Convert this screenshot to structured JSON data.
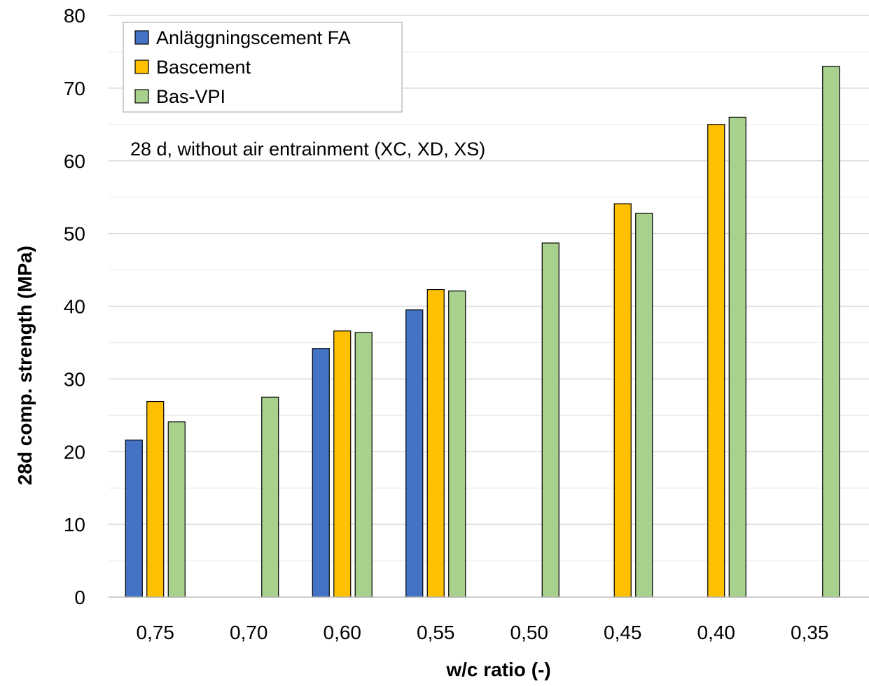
{
  "chart_data": {
    "type": "bar",
    "title": "",
    "xlabel": "w/c ratio (-)",
    "ylabel": "28d comp. strength (MPa)",
    "annotation": "28 d, without air entrainment (XC, XD, XS)",
    "categories": [
      "0,75",
      "0,70",
      "0,60",
      "0,55",
      "0,50",
      "0,45",
      "0,40",
      "0,35"
    ],
    "ylim": [
      0,
      80
    ],
    "yticks": [
      0,
      10,
      20,
      30,
      40,
      50,
      60,
      70,
      80
    ],
    "grid": true,
    "legend_position": "top-left",
    "series": [
      {
        "name": "Anläggningscement FA",
        "color": "#4472C4",
        "values": [
          21.6,
          null,
          34.2,
          39.5,
          null,
          null,
          null,
          null
        ]
      },
      {
        "name": "Bascement",
        "color": "#FFC000",
        "values": [
          26.9,
          null,
          36.6,
          42.3,
          null,
          54.1,
          65.0,
          null
        ]
      },
      {
        "name": "Bas-VPI",
        "color": "#A9D18E",
        "values": [
          24.1,
          27.5,
          36.4,
          42.1,
          48.7,
          52.8,
          66.0,
          73.0
        ]
      }
    ]
  }
}
